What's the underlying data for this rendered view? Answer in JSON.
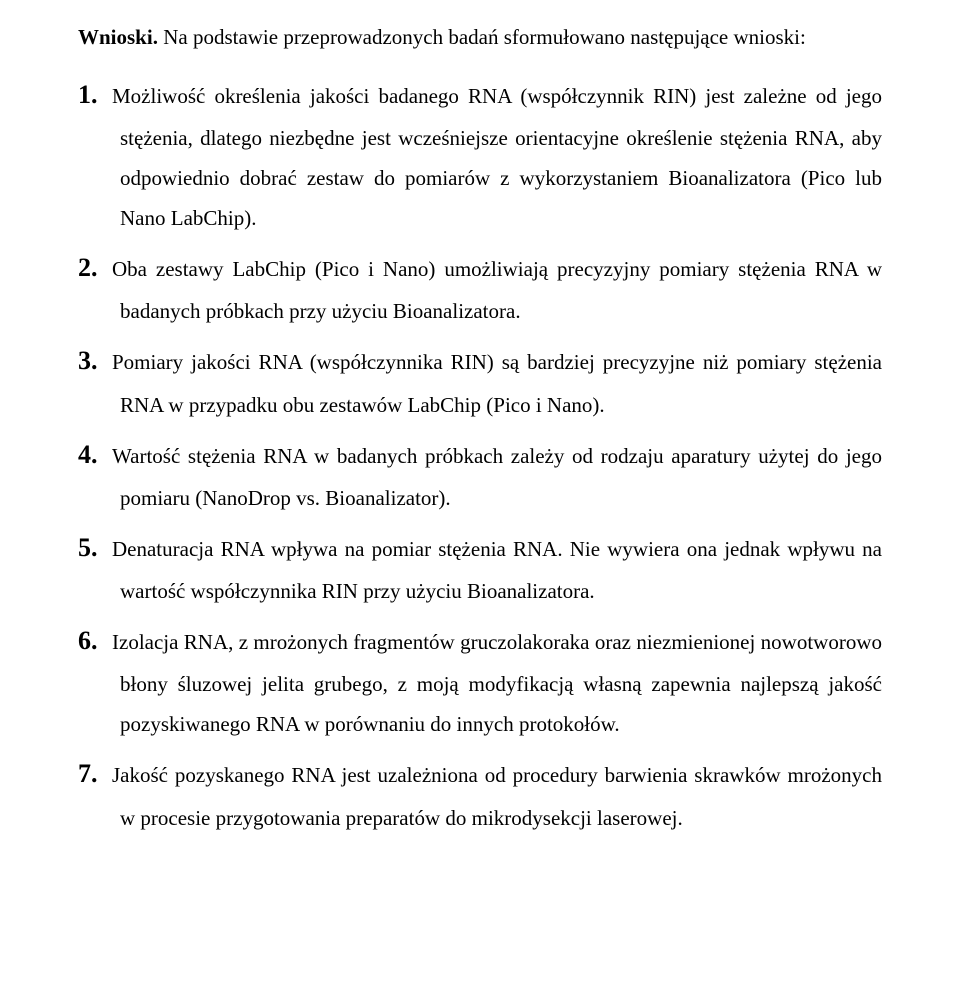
{
  "intro": {
    "label_bold": "Wnioski.",
    "text": " Na podstawie przeprowadzonych badań sformułowano następujące wnioski:"
  },
  "items": [
    {
      "n": "1.",
      "text": "Możliwość określenia jakości badanego RNA (współczynnik RIN) jest zależne od jego stężenia, dlatego niezbędne jest wcześniejsze orientacyjne określenie stężenia RNA, aby odpowiednio dobrać zestaw do pomiarów z wykorzystaniem Bioanalizatora (Pico lub Nano LabChip)."
    },
    {
      "n": "2.",
      "text": "Oba zestawy LabChip (Pico i Nano) umożliwiają precyzyjny pomiary stężenia RNA w badanych próbkach przy użyciu Bioanalizatora."
    },
    {
      "n": "3.",
      "text": "Pomiary jakości RNA (współczynnika RIN) są bardziej precyzyjne niż pomiary stężenia RNA w przypadku obu zestawów LabChip (Pico i Nano)."
    },
    {
      "n": "4.",
      "text": "Wartość stężenia RNA w badanych próbkach zależy od rodzaju aparatury użytej do jego pomiaru (NanoDrop vs. Bioanalizator)."
    },
    {
      "n": "5.",
      "text": "Denaturacja RNA wpływa na pomiar stężenia RNA. Nie wywiera ona jednak wpływu na wartość współczynnika RIN przy użyciu Bioanalizatora."
    },
    {
      "n": "6.",
      "text": "Izolacja RNA, z mrożonych fragmentów gruczolakoraka oraz niezmienionej nowotworowo błony śluzowej jelita grubego, z moją modyfikacją własną zapewnia najlepszą jakość pozyskiwanego RNA w porównaniu do innych protokołów."
    },
    {
      "n": "7.",
      "text": "Jakość pozyskanego RNA jest uzależniona od procedury barwienia skrawków mrożonych w procesie przygotowania preparatów do mikrodysekcji laserowej."
    }
  ]
}
